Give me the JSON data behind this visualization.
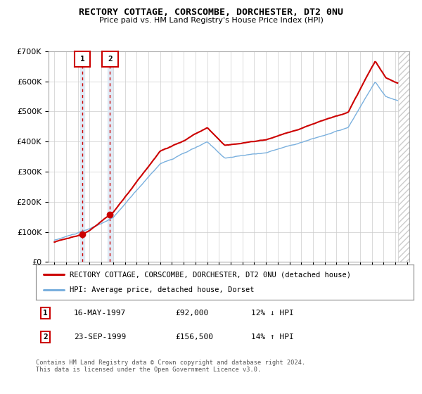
{
  "title": "RECTORY COTTAGE, CORSCOMBE, DORCHESTER, DT2 0NU",
  "subtitle": "Price paid vs. HM Land Registry's House Price Index (HPI)",
  "legend_line1": "RECTORY COTTAGE, CORSCOMBE, DORCHESTER, DT2 0NU (detached house)",
  "legend_line2": "HPI: Average price, detached house, Dorset",
  "transaction1_label": "1",
  "transaction1_date": "16-MAY-1997",
  "transaction1_price": "£92,000",
  "transaction1_hpi": "12% ↓ HPI",
  "transaction2_label": "2",
  "transaction2_date": "23-SEP-1999",
  "transaction2_price": "£156,500",
  "transaction2_hpi": "14% ↑ HPI",
  "footer": "Contains HM Land Registry data © Crown copyright and database right 2024.\nThis data is licensed under the Open Government Licence v3.0.",
  "hpi_color": "#7ab0de",
  "price_color": "#cc0000",
  "marker_color": "#cc0000",
  "vline_color": "#cc0000",
  "shade_color": "#dce8f5",
  "ylim": [
    0,
    700000
  ],
  "yticks": [
    0,
    100000,
    200000,
    300000,
    400000,
    500000,
    600000,
    700000
  ],
  "ytick_labels": [
    "£0",
    "£100K",
    "£200K",
    "£300K",
    "£400K",
    "£500K",
    "£600K",
    "£700K"
  ],
  "xmin": 1994.5,
  "xmax": 2025.2,
  "hatch_start": 2024.25,
  "transaction1_x": 1997.37,
  "transaction1_y": 92000,
  "transaction2_x": 1999.73,
  "transaction2_y": 156500
}
